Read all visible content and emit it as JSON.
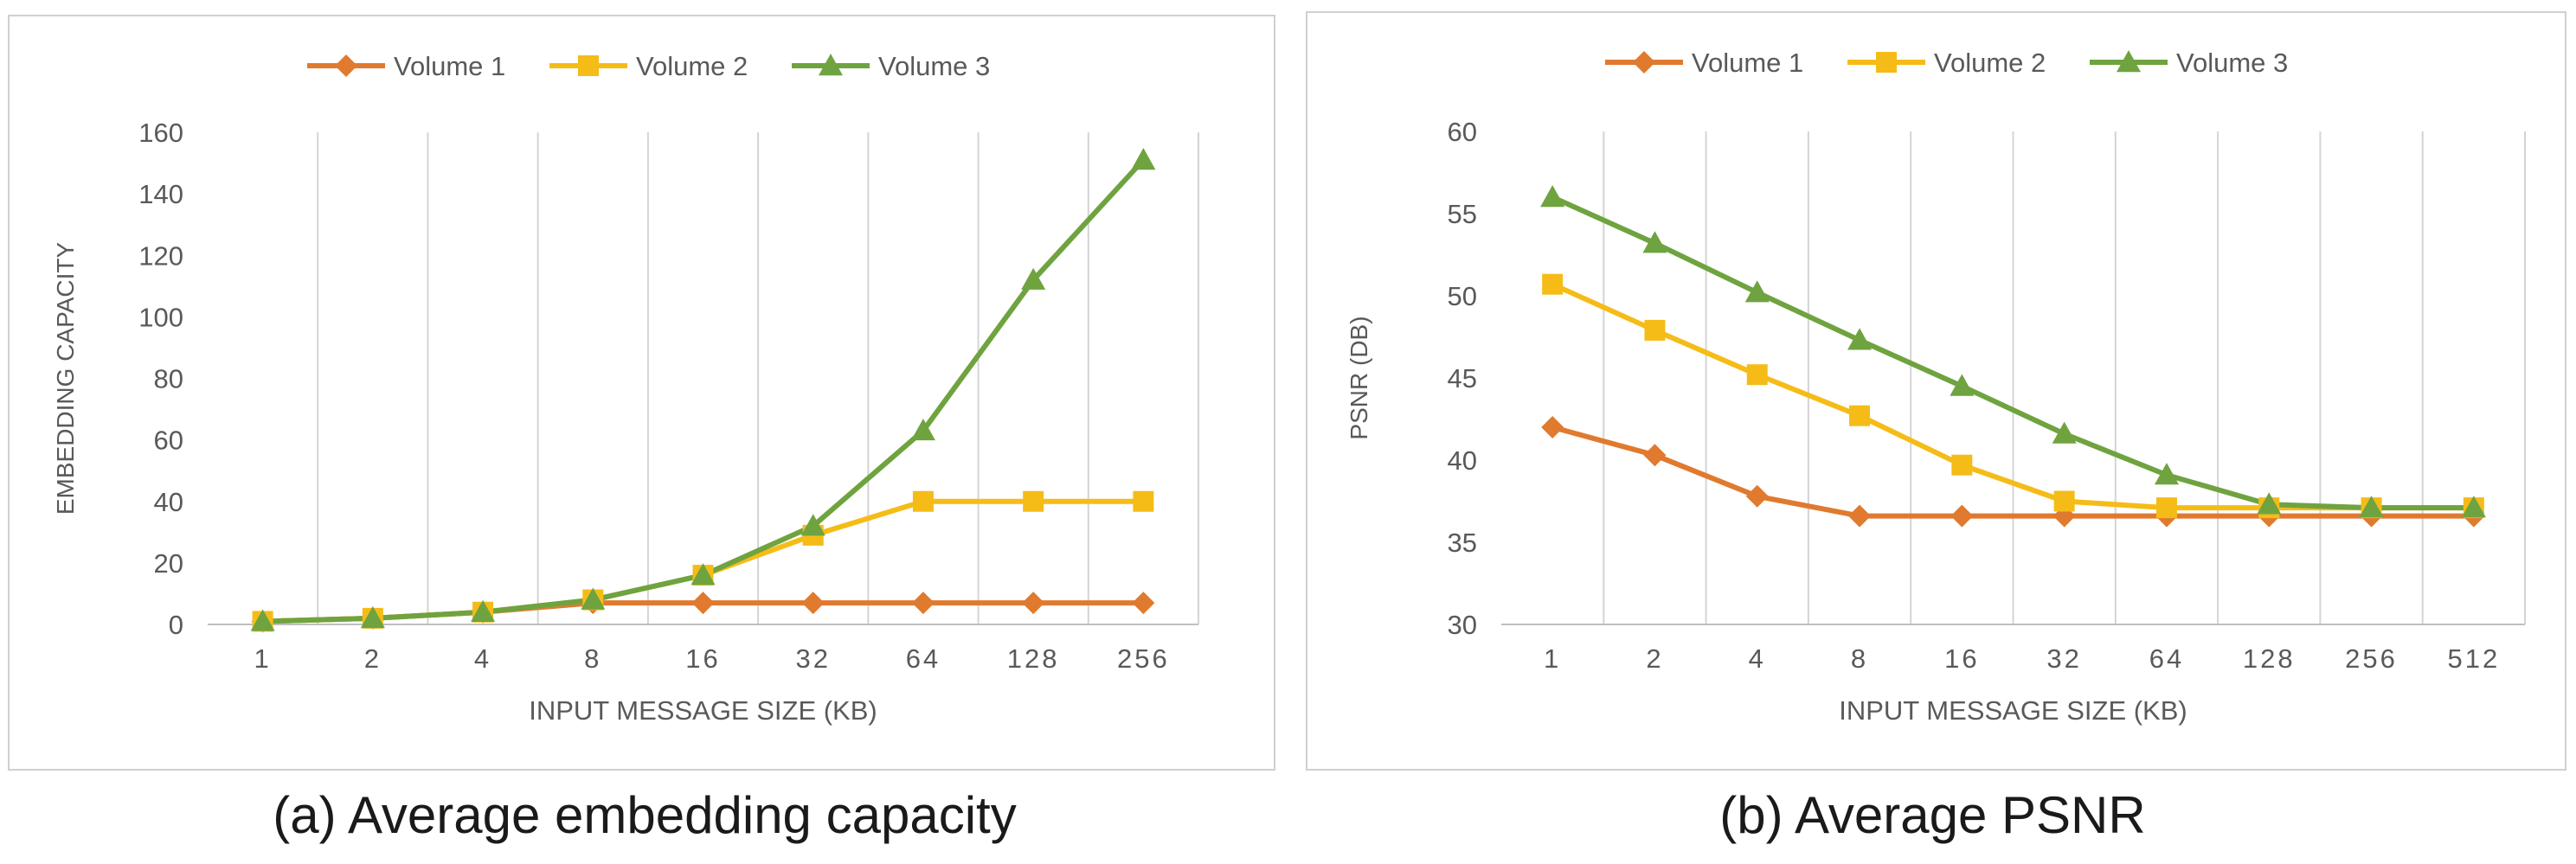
{
  "colors": {
    "series": [
      "#E07A2F",
      "#F5BC18",
      "#6FA33F"
    ],
    "grid": "#d4d4d4",
    "axis": "#bfbfbf",
    "text": "#595959",
    "frame": "#d0d0d0"
  },
  "chart_data": [
    {
      "type": "line",
      "title": "",
      "xlabel": "INPUT MESSAGE SIZE (KB)",
      "ylabel": "EMBEDDING CAPACITY",
      "caption": "(a) Average embedding capacity",
      "categories": [
        "1",
        "2",
        "4",
        "8",
        "16",
        "32",
        "64",
        "128",
        "256"
      ],
      "ylim": [
        0,
        160
      ],
      "yticks": [
        "0",
        "20",
        "40",
        "60",
        "80",
        "100",
        "120",
        "140",
        "160"
      ],
      "grid": "vertical",
      "legend_position": "top-center",
      "series": [
        {
          "name": "Volume 1",
          "marker": "diamond",
          "values": [
            1,
            2,
            4,
            7,
            7,
            7,
            7,
            7,
            7
          ]
        },
        {
          "name": "Volume 2",
          "marker": "square",
          "values": [
            1,
            2,
            4,
            8,
            16,
            29,
            40,
            40,
            40
          ]
        },
        {
          "name": "Volume 3",
          "marker": "triangle",
          "values": [
            1,
            2,
            4,
            8,
            16,
            32,
            63,
            112,
            151
          ]
        }
      ]
    },
    {
      "type": "line",
      "title": "",
      "xlabel": "INPUT MESSAGE SIZE (KB)",
      "ylabel": "PSNR (DB)",
      "caption": "(b) Average PSNR",
      "categories": [
        "1",
        "2",
        "4",
        "8",
        "16",
        "32",
        "64",
        "128",
        "256",
        "512"
      ],
      "ylim": [
        30,
        60
      ],
      "yticks": [
        "30",
        "35",
        "40",
        "45",
        "50",
        "55",
        "60"
      ],
      "grid": "vertical",
      "legend_position": "top-center",
      "series": [
        {
          "name": "Volume 1",
          "marker": "diamond",
          "values": [
            42,
            40.3,
            37.8,
            36.6,
            36.6,
            36.6,
            36.6,
            36.6,
            36.6,
            36.6
          ]
        },
        {
          "name": "Volume 2",
          "marker": "square",
          "values": [
            50.7,
            47.9,
            45.2,
            42.7,
            39.7,
            37.5,
            37.1,
            37.1,
            37.1,
            37.1
          ]
        },
        {
          "name": "Volume 3",
          "marker": "triangle",
          "values": [
            56,
            53.2,
            50.2,
            47.3,
            44.5,
            41.6,
            39.1,
            37.3,
            37.1,
            37.1
          ]
        }
      ]
    }
  ]
}
